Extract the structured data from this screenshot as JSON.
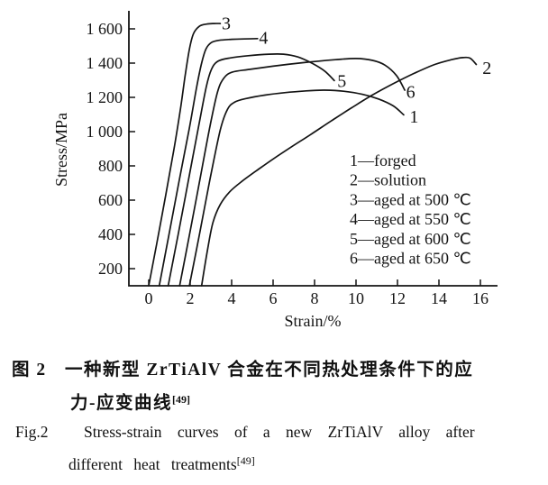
{
  "chart_data": {
    "type": "line",
    "title": "",
    "xlabel": "Strain/%",
    "ylabel": "Stress/MPa",
    "xlim": [
      0,
      16
    ],
    "ylim": [
      100,
      1700
    ],
    "grid": false,
    "x_ticks": [
      0,
      2,
      4,
      6,
      8,
      10,
      12,
      14,
      16
    ],
    "x_tick_labels": [
      "0",
      "2",
      "4",
      "6",
      "8",
      "10",
      "12",
      "14",
      "16"
    ],
    "y_ticks": [
      200,
      400,
      600,
      800,
      1000,
      1200,
      1400,
      1600
    ],
    "y_tick_labels": [
      "200",
      "400",
      "600",
      "800",
      "1 000",
      "1 200",
      "1 400",
      "1 600"
    ],
    "legend_position": "inside-lower-right",
    "legend": [
      "1—forged",
      "2—solution",
      "3—aged at 500 ℃",
      "4—aged at 550 ℃",
      "5—aged at 600 ℃",
      "6—aged at 650 ℃"
    ],
    "series": [
      {
        "curve_label": "1",
        "name": "forged",
        "label_at": [
          12.58,
          1083
        ],
        "points": [
          [
            1.96,
            100
          ],
          [
            2.45,
            400
          ],
          [
            2.95,
            720
          ],
          [
            3.45,
            1010
          ],
          [
            3.8,
            1130
          ],
          [
            4.15,
            1172
          ],
          [
            4.7,
            1193
          ],
          [
            5.6,
            1213
          ],
          [
            6.6,
            1228
          ],
          [
            7.6,
            1238
          ],
          [
            8.5,
            1242
          ],
          [
            9.4,
            1236
          ],
          [
            10.3,
            1218
          ],
          [
            11.1,
            1190
          ],
          [
            11.8,
            1150
          ],
          [
            12.3,
            1098
          ]
        ]
      },
      {
        "curve_label": "2",
        "name": "solution",
        "label_at": [
          16.1,
          1368
        ],
        "points": [
          [
            2.55,
            100
          ],
          [
            2.85,
            320
          ],
          [
            3.1,
            470
          ],
          [
            3.45,
            575
          ],
          [
            3.9,
            648
          ],
          [
            4.5,
            710
          ],
          [
            5.2,
            772
          ],
          [
            6.0,
            840
          ],
          [
            6.9,
            912
          ],
          [
            7.8,
            982
          ],
          [
            8.8,
            1062
          ],
          [
            9.8,
            1140
          ],
          [
            10.8,
            1214
          ],
          [
            11.8,
            1280
          ],
          [
            12.8,
            1340
          ],
          [
            13.8,
            1392
          ],
          [
            14.6,
            1420
          ],
          [
            15.15,
            1432
          ],
          [
            15.5,
            1429
          ],
          [
            15.8,
            1392
          ]
        ]
      },
      {
        "curve_label": "3",
        "name": "aged at 500 ℃",
        "label_at": [
          3.52,
          1630
        ],
        "points": [
          [
            0,
            100
          ],
          [
            0.38,
            340
          ],
          [
            0.82,
            630
          ],
          [
            1.22,
            900
          ],
          [
            1.52,
            1125
          ],
          [
            1.76,
            1330
          ],
          [
            1.96,
            1480
          ],
          [
            2.16,
            1572
          ],
          [
            2.45,
            1615
          ],
          [
            2.8,
            1628
          ],
          [
            3.15,
            1631
          ],
          [
            3.45,
            1631
          ]
        ]
      },
      {
        "curve_label": "4",
        "name": "aged at 550 ℃",
        "label_at": [
          5.32,
          1545
        ],
        "points": [
          [
            0.51,
            100
          ],
          [
            0.95,
            380
          ],
          [
            1.45,
            700
          ],
          [
            1.95,
            1012
          ],
          [
            2.3,
            1252
          ],
          [
            2.55,
            1400
          ],
          [
            2.76,
            1482
          ],
          [
            3.02,
            1520
          ],
          [
            3.4,
            1533
          ],
          [
            4.0,
            1539
          ],
          [
            4.6,
            1541
          ],
          [
            5.25,
            1543
          ]
        ]
      },
      {
        "curve_label": "5",
        "name": "aged at 600 ℃",
        "label_at": [
          9.1,
          1293
        ],
        "points": [
          [
            0.94,
            100
          ],
          [
            1.42,
            400
          ],
          [
            1.92,
            720
          ],
          [
            2.42,
            1040
          ],
          [
            2.78,
            1262
          ],
          [
            3.02,
            1362
          ],
          [
            3.32,
            1410
          ],
          [
            3.92,
            1430
          ],
          [
            4.8,
            1443
          ],
          [
            5.8,
            1452
          ],
          [
            6.5,
            1452
          ],
          [
            7.2,
            1436
          ],
          [
            7.9,
            1398
          ],
          [
            8.5,
            1352
          ],
          [
            8.95,
            1298
          ]
        ]
      },
      {
        "curve_label": "6",
        "name": "aged at 650 ℃",
        "label_at": [
          12.42,
          1228
        ],
        "points": [
          [
            1.49,
            100
          ],
          [
            1.97,
            400
          ],
          [
            2.47,
            720
          ],
          [
            2.97,
            1040
          ],
          [
            3.32,
            1232
          ],
          [
            3.62,
            1312
          ],
          [
            4.02,
            1347
          ],
          [
            4.85,
            1363
          ],
          [
            6.0,
            1382
          ],
          [
            7.5,
            1403
          ],
          [
            9.0,
            1420
          ],
          [
            10.0,
            1427
          ],
          [
            10.8,
            1416
          ],
          [
            11.4,
            1388
          ],
          [
            11.95,
            1328
          ],
          [
            12.35,
            1242
          ]
        ]
      }
    ]
  },
  "caption_zh": {
    "fig": "图 2",
    "line1": "一种新型 ZrTiAlV 合金在不同热处理条件下的应",
    "line2": "力-应变曲线",
    "ref": "[49]"
  },
  "caption_en": {
    "fig": "Fig.2",
    "line1": "Stress-strain curves of a new ZrTiAlV alloy after",
    "line2": "different heat treatments",
    "ref": "[49]"
  }
}
